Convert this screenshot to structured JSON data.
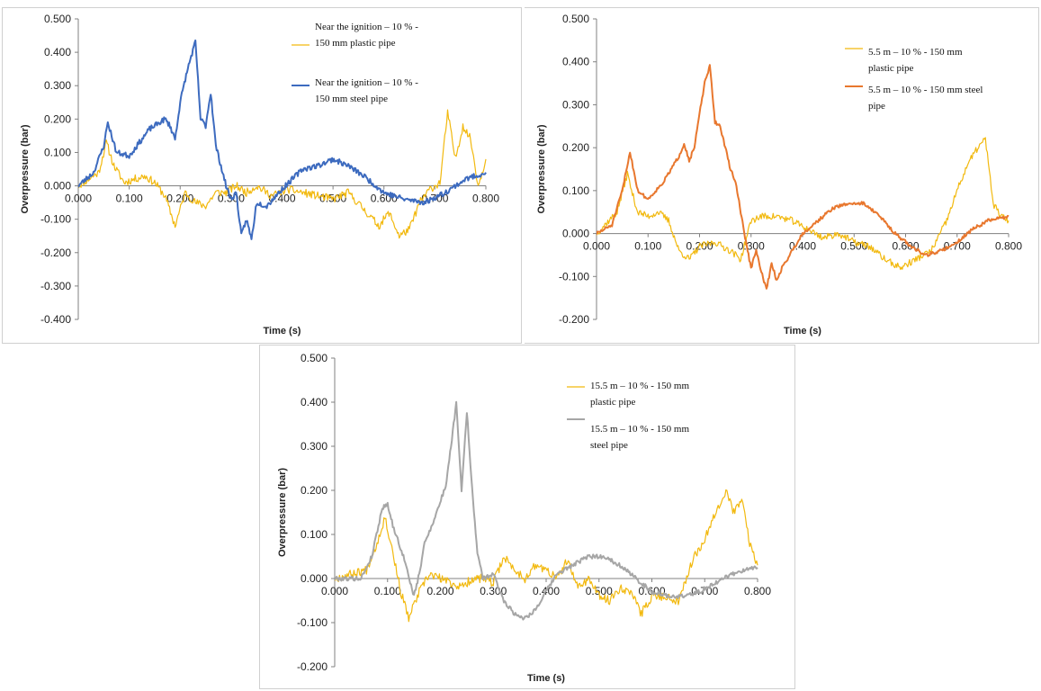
{
  "colors": {
    "plastic": "#f2b90f",
    "steel_blue": "#3d6bbf",
    "steel_orange": "#e8772e",
    "steel_gray": "#a6a6a6",
    "axis": "#808080"
  },
  "chart_data": [
    {
      "type": "line",
      "xlabel": "Time (s)",
      "ylabel": "Overpressure (bar)",
      "xlim": [
        0,
        0.8
      ],
      "ylim": [
        -0.4,
        0.5
      ],
      "xticks": [
        "0.000",
        "0.100",
        "0.200",
        "0.300",
        "0.400",
        "0.500",
        "0.600",
        "0.700",
        "0.800"
      ],
      "yticks": [
        "-0.400",
        "-0.300",
        "-0.200",
        "-0.100",
        "0.000",
        "0.100",
        "0.200",
        "0.300",
        "0.400",
        "0.500"
      ],
      "grid": false,
      "legend_position": "top-right",
      "series": [
        {
          "name_lines": [
            "Near the ignition – 10 % -",
            "150 mm plastic pipe"
          ],
          "color_key": "plastic",
          "noise": 0.012,
          "seed": 11,
          "x": [
            0.0,
            0.04,
            0.055,
            0.07,
            0.09,
            0.11,
            0.13,
            0.15,
            0.17,
            0.19,
            0.21,
            0.23,
            0.25,
            0.27,
            0.29,
            0.31,
            0.33,
            0.35,
            0.38,
            0.41,
            0.44,
            0.47,
            0.5,
            0.53,
            0.56,
            0.59,
            0.61,
            0.63,
            0.65,
            0.67,
            0.69,
            0.71,
            0.725,
            0.74,
            0.755,
            0.77,
            0.785,
            0.8
          ],
          "y": [
            0.0,
            0.04,
            0.13,
            0.06,
            0.01,
            0.02,
            0.03,
            0.01,
            -0.03,
            -0.12,
            -0.02,
            -0.05,
            -0.06,
            -0.02,
            -0.02,
            0.0,
            -0.02,
            0.0,
            -0.03,
            -0.01,
            -0.02,
            -0.03,
            -0.04,
            -0.02,
            -0.07,
            -0.12,
            -0.08,
            -0.15,
            -0.13,
            -0.05,
            -0.01,
            0.01,
            0.22,
            0.08,
            0.18,
            0.14,
            0.0,
            0.08
          ]
        },
        {
          "name_lines": [
            "Near the ignition – 10 % -",
            "150 mm steel pipe"
          ],
          "color_key": "steel_blue",
          "noise": 0.008,
          "seed": 23,
          "x": [
            0.0,
            0.03,
            0.05,
            0.058,
            0.075,
            0.1,
            0.12,
            0.14,
            0.16,
            0.17,
            0.18,
            0.19,
            0.2,
            0.21,
            0.22,
            0.23,
            0.24,
            0.25,
            0.26,
            0.27,
            0.28,
            0.29,
            0.3,
            0.31,
            0.32,
            0.33,
            0.34,
            0.35,
            0.37,
            0.4,
            0.44,
            0.47,
            0.5,
            0.53,
            0.56,
            0.6,
            0.64,
            0.68,
            0.72,
            0.76,
            0.8
          ],
          "y": [
            0.0,
            0.04,
            0.12,
            0.19,
            0.1,
            0.09,
            0.13,
            0.17,
            0.19,
            0.2,
            0.18,
            0.14,
            0.25,
            0.32,
            0.38,
            0.43,
            0.2,
            0.18,
            0.28,
            0.12,
            0.06,
            0.0,
            -0.04,
            -0.02,
            -0.15,
            -0.1,
            -0.16,
            -0.05,
            -0.06,
            -0.01,
            0.05,
            0.06,
            0.08,
            0.06,
            0.03,
            -0.02,
            -0.04,
            -0.05,
            -0.02,
            0.02,
            0.04
          ]
        }
      ]
    },
    {
      "type": "line",
      "xlabel": "Time (s)",
      "ylabel": "Overpressure (bar)",
      "xlim": [
        0,
        0.8
      ],
      "ylim": [
        -0.2,
        0.5
      ],
      "xticks": [
        "0.000",
        "0.100",
        "0.200",
        "0.300",
        "0.400",
        "0.500",
        "0.600",
        "0.700",
        "0.800"
      ],
      "yticks": [
        "-0.200",
        "-0.100",
        "0.000",
        "0.100",
        "0.200",
        "0.300",
        "0.400",
        "0.500"
      ],
      "grid": false,
      "legend_position": "top-right",
      "series": [
        {
          "name_lines": [
            "5.5 m – 10 % - 150 mm",
            "plastic pipe"
          ],
          "color_key": "plastic",
          "noise": 0.008,
          "seed": 37,
          "x": [
            0.0,
            0.04,
            0.06,
            0.068,
            0.08,
            0.1,
            0.12,
            0.14,
            0.16,
            0.18,
            0.2,
            0.23,
            0.26,
            0.28,
            0.3,
            0.32,
            0.35,
            0.38,
            0.41,
            0.44,
            0.47,
            0.5,
            0.53,
            0.56,
            0.59,
            0.62,
            0.65,
            0.68,
            0.7,
            0.72,
            0.74,
            0.755,
            0.77,
            0.785,
            0.8
          ],
          "y": [
            0.0,
            0.05,
            0.14,
            0.1,
            0.05,
            0.04,
            0.05,
            0.03,
            -0.04,
            -0.06,
            -0.03,
            -0.02,
            -0.04,
            -0.06,
            0.03,
            0.04,
            0.04,
            0.03,
            0.01,
            -0.01,
            0.0,
            -0.02,
            -0.03,
            -0.06,
            -0.08,
            -0.06,
            -0.04,
            0.03,
            0.1,
            0.16,
            0.2,
            0.22,
            0.07,
            0.04,
            0.03
          ]
        },
        {
          "name_lines": [
            "5.5 m – 10 % - 150 mm steel",
            "pipe"
          ],
          "color_key": "steel_orange",
          "noise": 0.004,
          "seed": 51,
          "x": [
            0.0,
            0.03,
            0.05,
            0.065,
            0.08,
            0.1,
            0.13,
            0.16,
            0.17,
            0.18,
            0.19,
            0.2,
            0.21,
            0.22,
            0.23,
            0.24,
            0.25,
            0.26,
            0.27,
            0.28,
            0.29,
            0.3,
            0.31,
            0.32,
            0.33,
            0.34,
            0.35,
            0.36,
            0.38,
            0.4,
            0.43,
            0.46,
            0.49,
            0.52,
            0.55,
            0.58,
            0.61,
            0.64,
            0.67,
            0.7,
            0.73,
            0.76,
            0.8
          ],
          "y": [
            0.0,
            0.02,
            0.1,
            0.19,
            0.1,
            0.08,
            0.12,
            0.18,
            0.21,
            0.17,
            0.2,
            0.28,
            0.35,
            0.39,
            0.26,
            0.25,
            0.2,
            0.15,
            0.12,
            0.05,
            -0.02,
            -0.08,
            -0.04,
            -0.09,
            -0.13,
            -0.07,
            -0.11,
            -0.08,
            -0.04,
            0.0,
            0.03,
            0.06,
            0.07,
            0.07,
            0.04,
            0.0,
            -0.03,
            -0.05,
            -0.04,
            -0.02,
            0.01,
            0.03,
            0.04
          ]
        }
      ]
    },
    {
      "type": "line",
      "xlabel": "Time (s)",
      "ylabel": "Overpressure (bar)",
      "xlim": [
        0,
        0.8
      ],
      "ylim": [
        -0.2,
        0.5
      ],
      "xticks": [
        "0.000",
        "0.100",
        "0.200",
        "0.300",
        "0.400",
        "0.500",
        "0.600",
        "0.700",
        "0.800"
      ],
      "yticks": [
        "-0.200",
        "-0.100",
        "0.000",
        "0.100",
        "0.200",
        "0.300",
        "0.400",
        "0.500"
      ],
      "grid": false,
      "legend_position": "top-right",
      "series": [
        {
          "name_lines": [
            "15.5 m – 10 % - 150 mm",
            "plastic pipe"
          ],
          "color_key": "plastic",
          "noise": 0.01,
          "seed": 67,
          "x": [
            0.0,
            0.06,
            0.08,
            0.095,
            0.11,
            0.125,
            0.14,
            0.16,
            0.18,
            0.2,
            0.22,
            0.24,
            0.26,
            0.28,
            0.3,
            0.32,
            0.34,
            0.36,
            0.38,
            0.4,
            0.42,
            0.44,
            0.46,
            0.48,
            0.5,
            0.52,
            0.54,
            0.56,
            0.58,
            0.6,
            0.62,
            0.65,
            0.68,
            0.7,
            0.72,
            0.74,
            0.755,
            0.77,
            0.785,
            0.8
          ],
          "y": [
            0.0,
            0.02,
            0.08,
            0.14,
            0.06,
            -0.03,
            -0.09,
            -0.03,
            0.01,
            0.0,
            -0.01,
            -0.02,
            0.0,
            0.0,
            -0.01,
            0.05,
            0.02,
            0.0,
            0.03,
            0.02,
            0.0,
            0.04,
            -0.02,
            0.0,
            -0.04,
            -0.05,
            -0.02,
            -0.03,
            -0.08,
            -0.04,
            -0.04,
            -0.05,
            0.05,
            0.09,
            0.15,
            0.2,
            0.15,
            0.18,
            0.08,
            0.03
          ]
        },
        {
          "name_lines": [
            "15.5 m – 10 % - 150 mm",
            "steel pipe"
          ],
          "color_key": "steel_gray",
          "noise": 0.005,
          "seed": 79,
          "x": [
            0.0,
            0.05,
            0.07,
            0.09,
            0.1,
            0.11,
            0.13,
            0.15,
            0.16,
            0.17,
            0.19,
            0.21,
            0.22,
            0.23,
            0.24,
            0.25,
            0.26,
            0.27,
            0.28,
            0.3,
            0.32,
            0.34,
            0.36,
            0.38,
            0.4,
            0.42,
            0.45,
            0.48,
            0.51,
            0.54,
            0.57,
            0.6,
            0.63,
            0.66,
            0.69,
            0.72,
            0.75,
            0.78,
            0.8
          ],
          "y": [
            0.0,
            0.0,
            0.05,
            0.16,
            0.17,
            0.12,
            0.05,
            -0.04,
            0.01,
            0.08,
            0.14,
            0.21,
            0.3,
            0.4,
            0.2,
            0.38,
            0.2,
            0.06,
            0.0,
            0.01,
            -0.05,
            -0.08,
            -0.09,
            -0.07,
            -0.03,
            0.01,
            0.03,
            0.05,
            0.05,
            0.03,
            0.0,
            -0.03,
            -0.04,
            -0.04,
            -0.03,
            -0.01,
            0.01,
            0.02,
            0.025
          ]
        }
      ]
    }
  ]
}
